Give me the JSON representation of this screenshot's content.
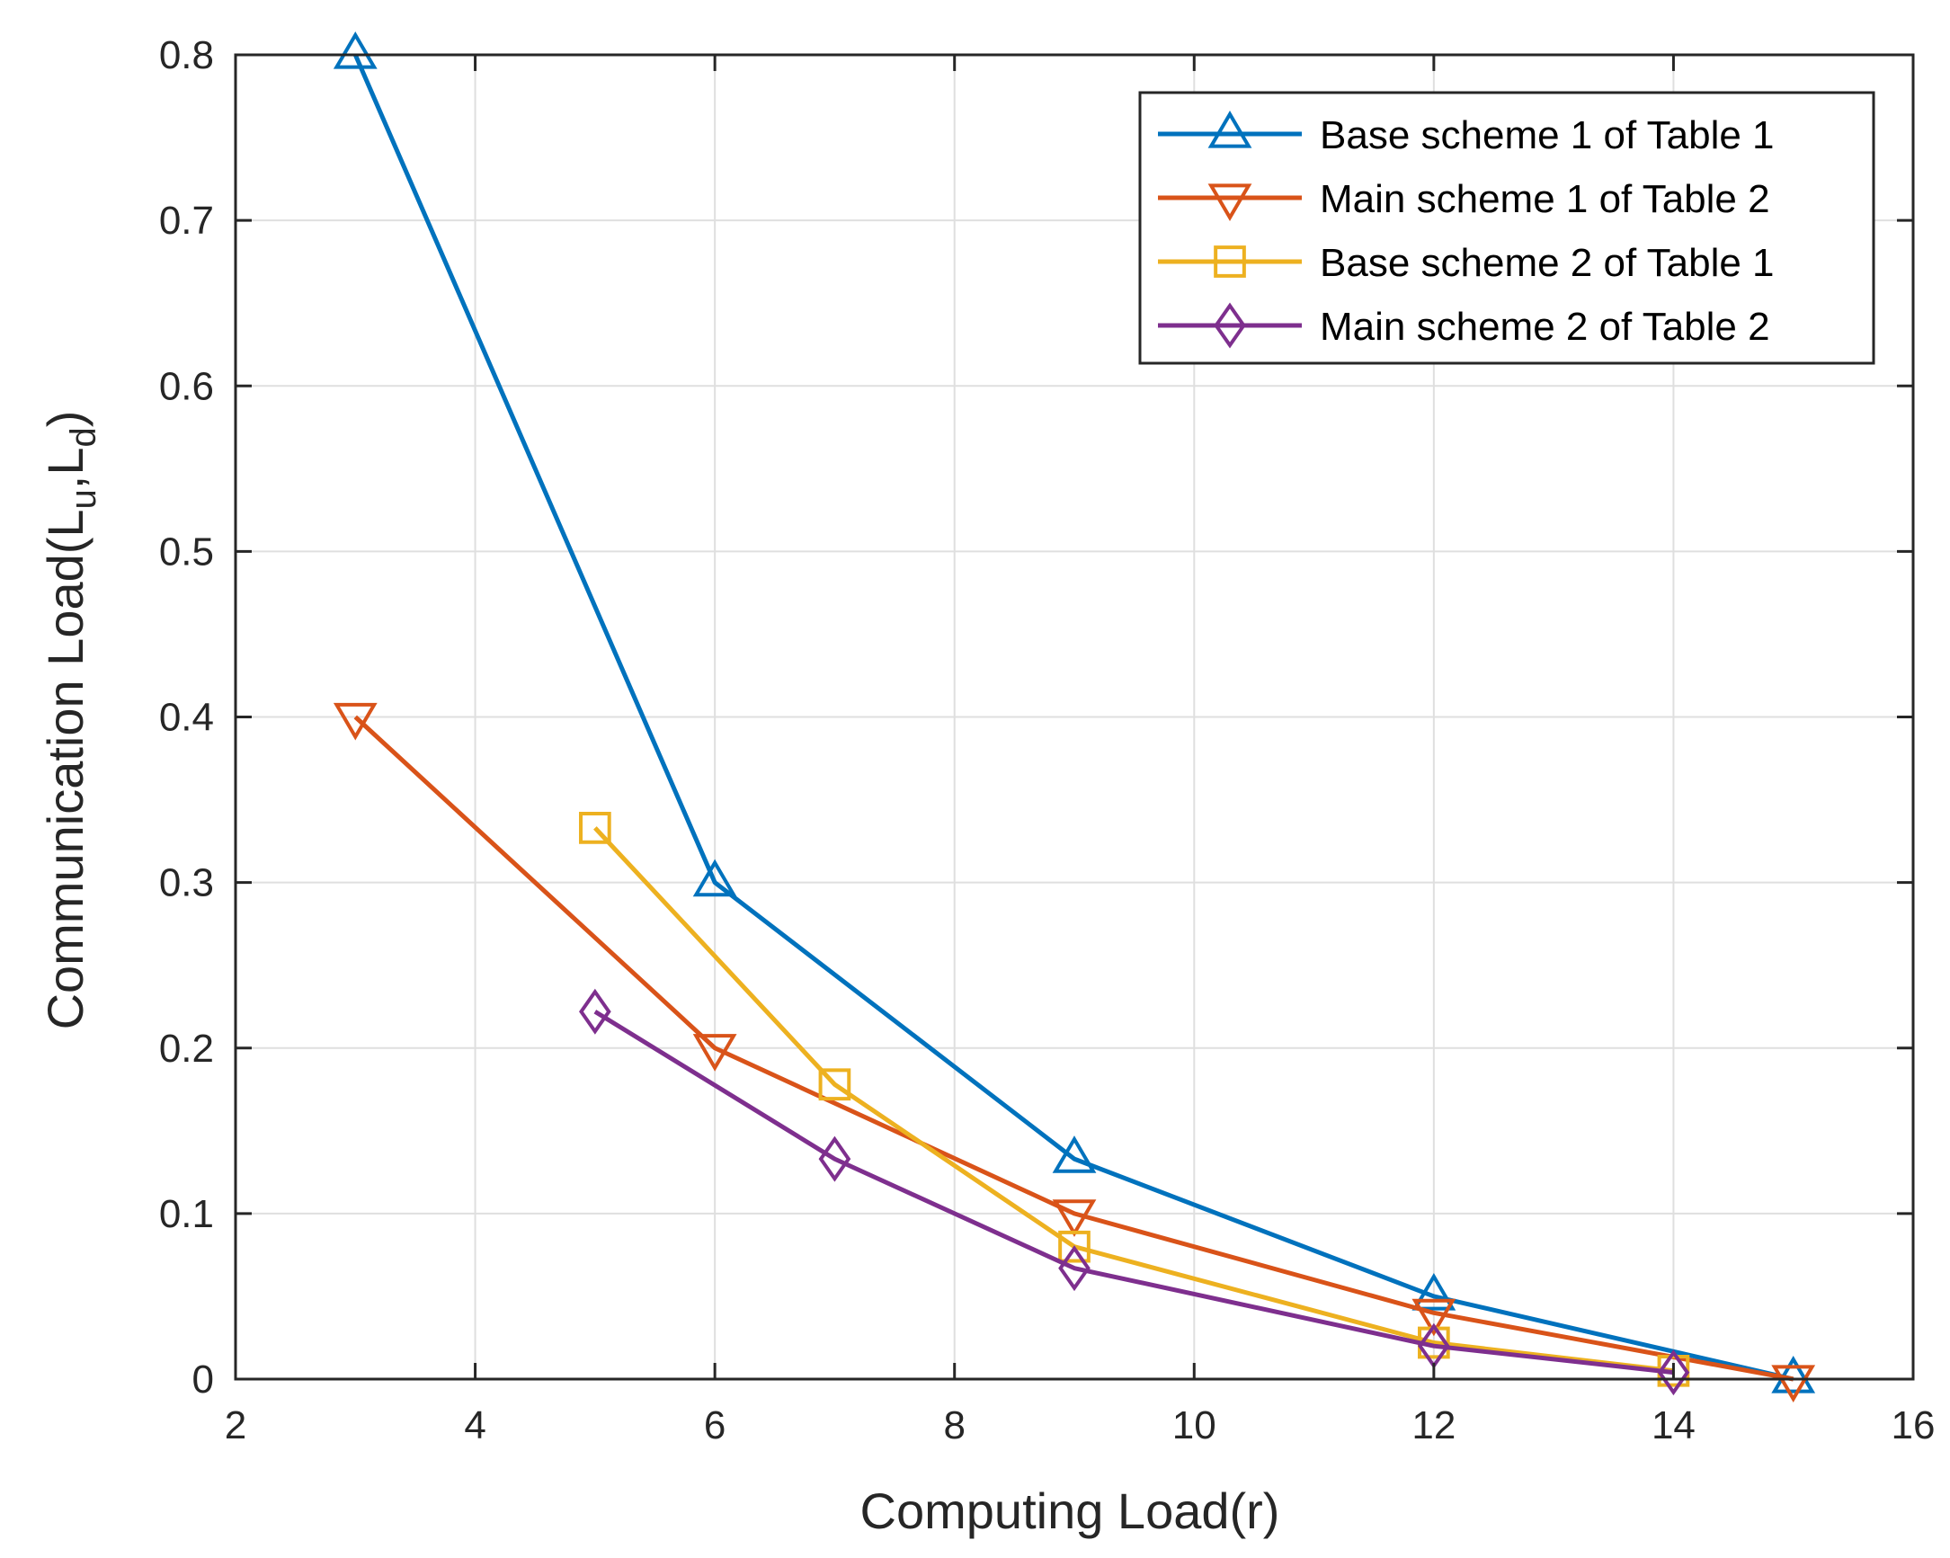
{
  "chart_data": {
    "type": "line",
    "title": "",
    "xlabel": "Computing Load(r)",
    "ylabel_parts": [
      "Communication Load(L",
      "u",
      ",L",
      "d",
      ")"
    ],
    "xlim": [
      2,
      16
    ],
    "ylim": [
      0,
      0.8
    ],
    "xticks": [
      2,
      4,
      6,
      8,
      10,
      12,
      14,
      16
    ],
    "xtick_labels": [
      "2",
      "4",
      "6",
      "8",
      "10",
      "12",
      "14",
      "16"
    ],
    "yticks": [
      0,
      0.1,
      0.2,
      0.3,
      0.4,
      0.5,
      0.6,
      0.7,
      0.8
    ],
    "ytick_labels": [
      "0",
      "0.1",
      "0.2",
      "0.3",
      "0.4",
      "0.5",
      "0.6",
      "0.7",
      "0.8"
    ],
    "grid": true,
    "legend_position": "top-right",
    "series": [
      {
        "name": "Base scheme 1 of Table 1",
        "color": "#0072BD",
        "marker": "triangle-up",
        "x": [
          3,
          6,
          9,
          12,
          15
        ],
        "y": [
          0.8,
          0.3,
          0.133,
          0.05,
          0.0
        ]
      },
      {
        "name": "Main scheme 1 of Table 2",
        "color": "#D95319",
        "marker": "triangle-down",
        "x": [
          3,
          6,
          9,
          12,
          15
        ],
        "y": [
          0.4,
          0.2,
          0.1,
          0.04,
          0.0
        ]
      },
      {
        "name": "Base scheme 2 of Table 1",
        "color": "#EDB120",
        "marker": "square",
        "x": [
          5,
          7,
          9,
          12,
          14
        ],
        "y": [
          0.333,
          0.178,
          0.08,
          0.022,
          0.005
        ]
      },
      {
        "name": "Main scheme 2 of Table 2",
        "color": "#7E2F8E",
        "marker": "diamond",
        "x": [
          5,
          7,
          9,
          12,
          14
        ],
        "y": [
          0.222,
          0.133,
          0.067,
          0.02,
          0.004
        ]
      }
    ]
  }
}
